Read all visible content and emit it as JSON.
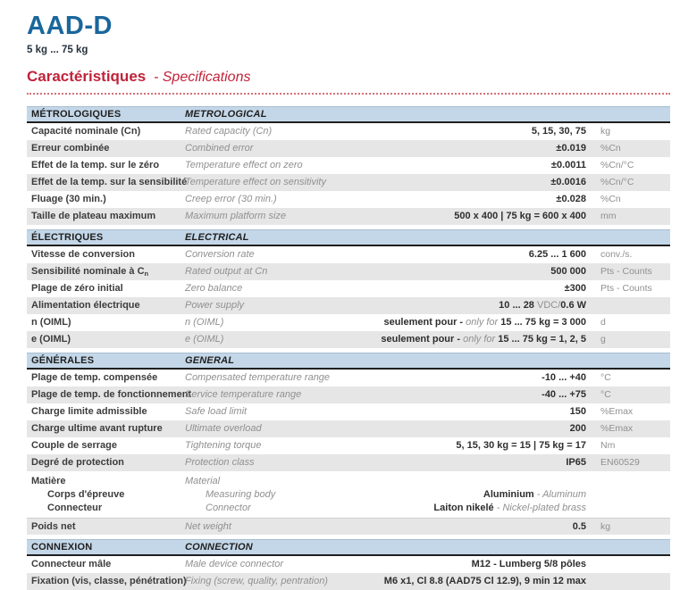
{
  "header": {
    "product_title": "AAD-D",
    "capacity_range": "5 kg ... 75 kg",
    "section_title_fr": "Caractéristiques",
    "section_title_en": "- Specifications"
  },
  "colors": {
    "title_blue": "#19679c",
    "accent_red": "#c0233a",
    "table_header_blue": "#c4d7e8",
    "row_alt_gray": "#e6e6e6"
  },
  "tables": [
    {
      "id": "metrological",
      "header": {
        "fr": "MÉTROLOGIQUES",
        "en": "METROLOGICAL"
      },
      "rows": [
        {
          "fr": "Capacité nominale (Cn)",
          "en": "Rated capacity (Cn)",
          "value": "5, 15, 30, 75",
          "unit": "kg"
        },
        {
          "fr": "Erreur combinée",
          "en": "Combined error",
          "value": "±0.019",
          "unit": "%Cn"
        },
        {
          "fr": "Effet de la temp. sur le zéro",
          "en": "Temperature effect on zero",
          "value": "±0.0011",
          "unit": "%Cn/°C"
        },
        {
          "fr": "Effet de la temp. sur la sensibilité",
          "en": "Temperature effect on sensitivity",
          "value": "±0.0016",
          "unit": "%Cn/°C"
        },
        {
          "fr": "Fluage (30 min.)",
          "en": "Creep error (30 min.)",
          "value": "±0.028",
          "unit": "%Cn"
        },
        {
          "fr": "Taille de plateau maximum",
          "en": "Maximum platform size",
          "value": "500 x 400  |  75 kg = 600 x 400",
          "unit": "mm"
        }
      ]
    },
    {
      "id": "electrical",
      "header": {
        "fr": "ÉLECTRIQUES",
        "en": "ELECTRICAL"
      },
      "rows": [
        {
          "fr": "Vitesse de conversion",
          "en": "Conversion rate",
          "value": "6.25 ... 1 600",
          "unit": "conv./s."
        },
        {
          "fr_base": "Sensibilité nominale à C",
          "fr_sub": "n",
          "en": "Rated output at Cn",
          "value": "500 000",
          "unit": "Pts - Counts"
        },
        {
          "fr": "Plage de zéro initial",
          "en": "Zero balance",
          "value": "±300",
          "unit": "Pts - Counts"
        },
        {
          "fr": "Alimentation électrique",
          "en": "Power supply",
          "value_a": "10 ... 28 ",
          "value_gray": "VDC/",
          "value_b": "0.6 W",
          "unit": ""
        },
        {
          "fr": "n (OIML)",
          "en": "n (OIML)",
          "value_a": "seulement pour - ",
          "value_i": "only for ",
          "value_b": "15 ... 75 kg = 3 000",
          "unit": "d"
        },
        {
          "fr": "e (OIML)",
          "en": "e (OIML)",
          "value_a": "seulement pour - ",
          "value_i": "only for ",
          "value_b": "15 ... 75 kg = 1, 2, 5",
          "unit": "g"
        }
      ]
    },
    {
      "id": "general",
      "header": {
        "fr": "GÉNÉRALES",
        "en": "GENERAL"
      },
      "rows": [
        {
          "fr": "Plage de temp. compensée",
          "en": "Compensated temperature range",
          "value": "-10 ... +40",
          "unit": "°C"
        },
        {
          "fr": "Plage de temp. de fonctionnement",
          "en": "Service temperature range",
          "value": "-40 ... +75",
          "unit": "°C"
        },
        {
          "fr": "Charge limite admissible",
          "en": "Safe load limit",
          "value": "150",
          "unit": "%Emax"
        },
        {
          "fr": "Charge ultime avant rupture",
          "en": "Ultimate overload",
          "value": "200",
          "unit": "%Emax"
        },
        {
          "fr": "Couple de serrage",
          "en": "Tightening torque",
          "value": "5, 15, 30 kg = 15  |  75 kg = 17",
          "unit": "Nm"
        },
        {
          "fr": "Degré de protection",
          "en": "Protection class",
          "value": "IP65",
          "unit": "EN60529"
        }
      ],
      "material_block": {
        "title_fr": "Matière",
        "title_en": "Material",
        "lines": [
          {
            "fr": "Corps d'épreuve",
            "en": "Measuring body",
            "value_a": "Aluminium",
            "value_i": " - Aluminum"
          },
          {
            "fr": "Connecteur",
            "en": "Connector",
            "value_a": "Laiton nikelé",
            "value_i": " - Nickel-plated brass"
          }
        ]
      },
      "net_weight_row": {
        "fr": "Poids net",
        "en": "Net weight",
        "value": "0.5",
        "unit": "kg"
      }
    },
    {
      "id": "connection",
      "header": {
        "fr": "CONNEXION",
        "en": "CONNECTION"
      },
      "rows": [
        {
          "fr": "Connecteur mâle",
          "en": "Male device connector",
          "value": "M12 - Lumberg 5/8 pôles",
          "unit": ""
        },
        {
          "fr": "Fixation (vis, classe, pénétration)",
          "en": "Fixing (screw, quality, pentration)",
          "value": "M6 x1, Cl 8.8 (AAD75 Cl 12.9), 9 min 12 max",
          "unit": ""
        }
      ]
    }
  ]
}
